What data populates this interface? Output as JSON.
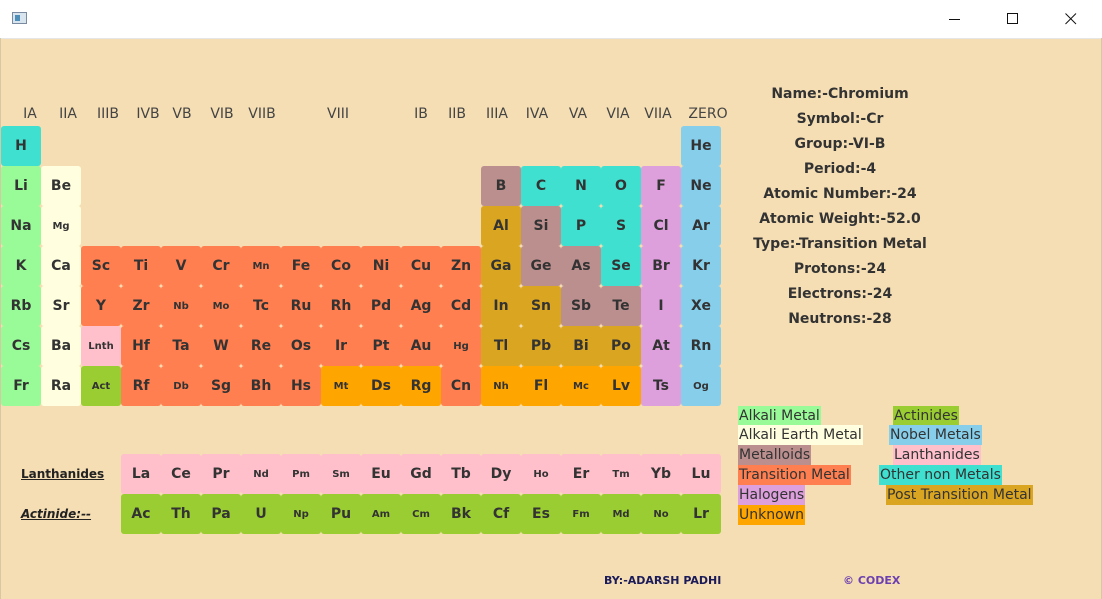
{
  "window": {
    "title": "",
    "icon": "app-window-icon"
  },
  "groups": [
    "IA",
    "IIA",
    "IIIB",
    "IVB",
    "VB",
    "VIB",
    "VIIB",
    "VIII",
    "IB",
    "IIB",
    "IIIA",
    "IVA",
    "VA",
    "VIA",
    "VIIA",
    "ZERO"
  ],
  "colors": {
    "alkali": "#98FB98",
    "alkaline": "#FFFFE0",
    "transition": "#FF7F50",
    "post": "#DAA520",
    "metalloid": "#BC8F8F",
    "nonmetal": "#40E0D0",
    "halogen": "#DDA0DD",
    "noble": "#87CEEB",
    "lanthanide": "#FFC0CB",
    "actinide": "#9ACD32",
    "unknown": "#FFA500"
  },
  "elements": [
    {
      "s": "H",
      "c": "nonmetal",
      "col": 1,
      "row": 1
    },
    {
      "s": "He",
      "c": "noble",
      "col": 18,
      "row": 1
    },
    {
      "s": "Li",
      "c": "alkali",
      "col": 1,
      "row": 2
    },
    {
      "s": "Be",
      "c": "alkaline",
      "col": 2,
      "row": 2
    },
    {
      "s": "B",
      "c": "metalloid",
      "col": 13,
      "row": 2
    },
    {
      "s": "C",
      "c": "nonmetal",
      "col": 14,
      "row": 2
    },
    {
      "s": "N",
      "c": "nonmetal",
      "col": 15,
      "row": 2
    },
    {
      "s": "O",
      "c": "nonmetal",
      "col": 16,
      "row": 2
    },
    {
      "s": "F",
      "c": "halogen",
      "col": 17,
      "row": 2
    },
    {
      "s": "Ne",
      "c": "noble",
      "col": 18,
      "row": 2
    },
    {
      "s": "Na",
      "c": "alkali",
      "col": 1,
      "row": 3
    },
    {
      "s": "Mg",
      "c": "alkaline",
      "col": 2,
      "row": 3,
      "small": true
    },
    {
      "s": "Al",
      "c": "post",
      "col": 13,
      "row": 3
    },
    {
      "s": "Si",
      "c": "metalloid",
      "col": 14,
      "row": 3
    },
    {
      "s": "P",
      "c": "nonmetal",
      "col": 15,
      "row": 3
    },
    {
      "s": "S",
      "c": "nonmetal",
      "col": 16,
      "row": 3
    },
    {
      "s": "Cl",
      "c": "halogen",
      "col": 17,
      "row": 3
    },
    {
      "s": "Ar",
      "c": "noble",
      "col": 18,
      "row": 3
    },
    {
      "s": "K",
      "c": "alkali",
      "col": 1,
      "row": 4
    },
    {
      "s": "Ca",
      "c": "alkaline",
      "col": 2,
      "row": 4
    },
    {
      "s": "Sc",
      "c": "transition",
      "col": 3,
      "row": 4
    },
    {
      "s": "Ti",
      "c": "transition",
      "col": 4,
      "row": 4
    },
    {
      "s": "V",
      "c": "transition",
      "col": 5,
      "row": 4
    },
    {
      "s": "Cr",
      "c": "transition",
      "col": 6,
      "row": 4
    },
    {
      "s": "Mn",
      "c": "transition",
      "col": 7,
      "row": 4,
      "small": true
    },
    {
      "s": "Fe",
      "c": "transition",
      "col": 8,
      "row": 4
    },
    {
      "s": "Co",
      "c": "transition",
      "col": 9,
      "row": 4
    },
    {
      "s": "Ni",
      "c": "transition",
      "col": 10,
      "row": 4
    },
    {
      "s": "Cu",
      "c": "transition",
      "col": 11,
      "row": 4
    },
    {
      "s": "Zn",
      "c": "transition",
      "col": 12,
      "row": 4
    },
    {
      "s": "Ga",
      "c": "post",
      "col": 13,
      "row": 4
    },
    {
      "s": "Ge",
      "c": "metalloid",
      "col": 14,
      "row": 4
    },
    {
      "s": "As",
      "c": "metalloid",
      "col": 15,
      "row": 4
    },
    {
      "s": "Se",
      "c": "nonmetal",
      "col": 16,
      "row": 4
    },
    {
      "s": "Br",
      "c": "halogen",
      "col": 17,
      "row": 4
    },
    {
      "s": "Kr",
      "c": "noble",
      "col": 18,
      "row": 4
    },
    {
      "s": "Rb",
      "c": "alkali",
      "col": 1,
      "row": 5
    },
    {
      "s": "Sr",
      "c": "alkaline",
      "col": 2,
      "row": 5
    },
    {
      "s": "Y",
      "c": "transition",
      "col": 3,
      "row": 5
    },
    {
      "s": "Zr",
      "c": "transition",
      "col": 4,
      "row": 5
    },
    {
      "s": "Nb",
      "c": "transition",
      "col": 5,
      "row": 5,
      "small": true
    },
    {
      "s": "Mo",
      "c": "transition",
      "col": 6,
      "row": 5,
      "small": true
    },
    {
      "s": "Tc",
      "c": "transition",
      "col": 7,
      "row": 5
    },
    {
      "s": "Ru",
      "c": "transition",
      "col": 8,
      "row": 5
    },
    {
      "s": "Rh",
      "c": "transition",
      "col": 9,
      "row": 5
    },
    {
      "s": "Pd",
      "c": "transition",
      "col": 10,
      "row": 5
    },
    {
      "s": "Ag",
      "c": "transition",
      "col": 11,
      "row": 5
    },
    {
      "s": "Cd",
      "c": "transition",
      "col": 12,
      "row": 5
    },
    {
      "s": "In",
      "c": "post",
      "col": 13,
      "row": 5
    },
    {
      "s": "Sn",
      "c": "post",
      "col": 14,
      "row": 5
    },
    {
      "s": "Sb",
      "c": "metalloid",
      "col": 15,
      "row": 5
    },
    {
      "s": "Te",
      "c": "metalloid",
      "col": 16,
      "row": 5
    },
    {
      "s": "I",
      "c": "halogen",
      "col": 17,
      "row": 5
    },
    {
      "s": "Xe",
      "c": "noble",
      "col": 18,
      "row": 5
    },
    {
      "s": "Cs",
      "c": "alkali",
      "col": 1,
      "row": 6
    },
    {
      "s": "Ba",
      "c": "alkaline",
      "col": 2,
      "row": 6
    },
    {
      "s": "Lnth",
      "c": "lanthanide",
      "col": 3,
      "row": 6,
      "small": true
    },
    {
      "s": "Hf",
      "c": "transition",
      "col": 4,
      "row": 6
    },
    {
      "s": "Ta",
      "c": "transition",
      "col": 5,
      "row": 6
    },
    {
      "s": "W",
      "c": "transition",
      "col": 6,
      "row": 6
    },
    {
      "s": "Re",
      "c": "transition",
      "col": 7,
      "row": 6
    },
    {
      "s": "Os",
      "c": "transition",
      "col": 8,
      "row": 6
    },
    {
      "s": "Ir",
      "c": "transition",
      "col": 9,
      "row": 6
    },
    {
      "s": "Pt",
      "c": "transition",
      "col": 10,
      "row": 6
    },
    {
      "s": "Au",
      "c": "transition",
      "col": 11,
      "row": 6
    },
    {
      "s": "Hg",
      "c": "transition",
      "col": 12,
      "row": 6,
      "small": true
    },
    {
      "s": "Tl",
      "c": "post",
      "col": 13,
      "row": 6
    },
    {
      "s": "Pb",
      "c": "post",
      "col": 14,
      "row": 6
    },
    {
      "s": "Bi",
      "c": "post",
      "col": 15,
      "row": 6
    },
    {
      "s": "Po",
      "c": "post",
      "col": 16,
      "row": 6
    },
    {
      "s": "At",
      "c": "halogen",
      "col": 17,
      "row": 6
    },
    {
      "s": "Rn",
      "c": "noble",
      "col": 18,
      "row": 6
    },
    {
      "s": "Fr",
      "c": "alkali",
      "col": 1,
      "row": 7
    },
    {
      "s": "Ra",
      "c": "alkaline",
      "col": 2,
      "row": 7
    },
    {
      "s": "Act",
      "c": "actinide",
      "col": 3,
      "row": 7,
      "small": true
    },
    {
      "s": "Rf",
      "c": "transition",
      "col": 4,
      "row": 7
    },
    {
      "s": "Db",
      "c": "transition",
      "col": 5,
      "row": 7,
      "small": true
    },
    {
      "s": "Sg",
      "c": "transition",
      "col": 6,
      "row": 7
    },
    {
      "s": "Bh",
      "c": "transition",
      "col": 7,
      "row": 7
    },
    {
      "s": "Hs",
      "c": "transition",
      "col": 8,
      "row": 7
    },
    {
      "s": "Mt",
      "c": "unknown",
      "col": 9,
      "row": 7,
      "small": true
    },
    {
      "s": "Ds",
      "c": "unknown",
      "col": 10,
      "row": 7
    },
    {
      "s": "Rg",
      "c": "unknown",
      "col": 11,
      "row": 7
    },
    {
      "s": "Cn",
      "c": "transition",
      "col": 12,
      "row": 7
    },
    {
      "s": "Nh",
      "c": "unknown",
      "col": 13,
      "row": 7,
      "small": true
    },
    {
      "s": "Fl",
      "c": "unknown",
      "col": 14,
      "row": 7
    },
    {
      "s": "Mc",
      "c": "unknown",
      "col": 15,
      "row": 7,
      "small": true
    },
    {
      "s": "Lv",
      "c": "unknown",
      "col": 16,
      "row": 7
    },
    {
      "s": "Ts",
      "c": "halogen",
      "col": 17,
      "row": 7
    },
    {
      "s": "Og",
      "c": "noble",
      "col": 18,
      "row": 7,
      "small": true
    }
  ],
  "lanthanides_label": "Lanthanides",
  "actinides_label": "Actinide:--",
  "lanthanides": [
    {
      "s": "La"
    },
    {
      "s": "Ce"
    },
    {
      "s": "Pr"
    },
    {
      "s": "Nd",
      "small": true
    },
    {
      "s": "Pm",
      "small": true
    },
    {
      "s": "Sm",
      "small": true
    },
    {
      "s": "Eu"
    },
    {
      "s": "Gd"
    },
    {
      "s": "Tb"
    },
    {
      "s": "Dy"
    },
    {
      "s": "Ho",
      "small": true
    },
    {
      "s": "Er"
    },
    {
      "s": "Tm",
      "small": true
    },
    {
      "s": "Yb"
    },
    {
      "s": "Lu"
    }
  ],
  "actinides": [
    {
      "s": "Ac"
    },
    {
      "s": "Th"
    },
    {
      "s": "Pa"
    },
    {
      "s": "U"
    },
    {
      "s": "Np",
      "small": true
    },
    {
      "s": "Pu"
    },
    {
      "s": "Am",
      "small": true
    },
    {
      "s": "Cm",
      "small": true
    },
    {
      "s": "Bk"
    },
    {
      "s": "Cf"
    },
    {
      "s": "Es"
    },
    {
      "s": "Fm",
      "small": true
    },
    {
      "s": "Md",
      "small": true
    },
    {
      "s": "No",
      "small": true
    },
    {
      "s": "Lr"
    }
  ],
  "info": {
    "name": "Name:-Chromium",
    "symbol": "Symbol:-Cr",
    "group": "Group:-VI-B",
    "period": "Period:-4",
    "atomic_number": "Atomic Number:-24",
    "atomic_weight": "Atomic Weight:-52.0",
    "type": "Type:-Transition Metal",
    "protons": "Protons:-24",
    "electrons": "Electrons:-24",
    "neutrons": "Neutrons:-28"
  },
  "legend": [
    {
      "label": "Alkali Metal",
      "c": "alkali",
      "name": "alkali-metal"
    },
    {
      "label": "Actinides",
      "c": "actinide",
      "name": "actinides"
    },
    {
      "label": "Alkali Earth Metal",
      "c": "alkaline",
      "name": "alkali-earth-metal"
    },
    {
      "label": "Nobel Metals",
      "c": "noble",
      "name": "nobel-metals"
    },
    {
      "label": "Metalloids",
      "c": "metalloid",
      "name": "metalloids"
    },
    {
      "label": "Lanthanides",
      "c": "lanthanide",
      "name": "lanthanides"
    },
    {
      "label": "Transition Metal",
      "c": "transition",
      "name": "transition-metal"
    },
    {
      "label": "Other non Metals",
      "c": "nonmetal",
      "name": "other-non-metals"
    },
    {
      "label": "Halogens",
      "c": "halogen",
      "name": "halogens"
    },
    {
      "label": "Post Transition Metal",
      "c": "post",
      "name": "post-transition-metal"
    },
    {
      "label": "Unknown",
      "c": "unknown",
      "name": "unknown"
    }
  ],
  "credits": {
    "by": "BY:-ADARSH PADHI",
    "codex": "© CODEX"
  }
}
